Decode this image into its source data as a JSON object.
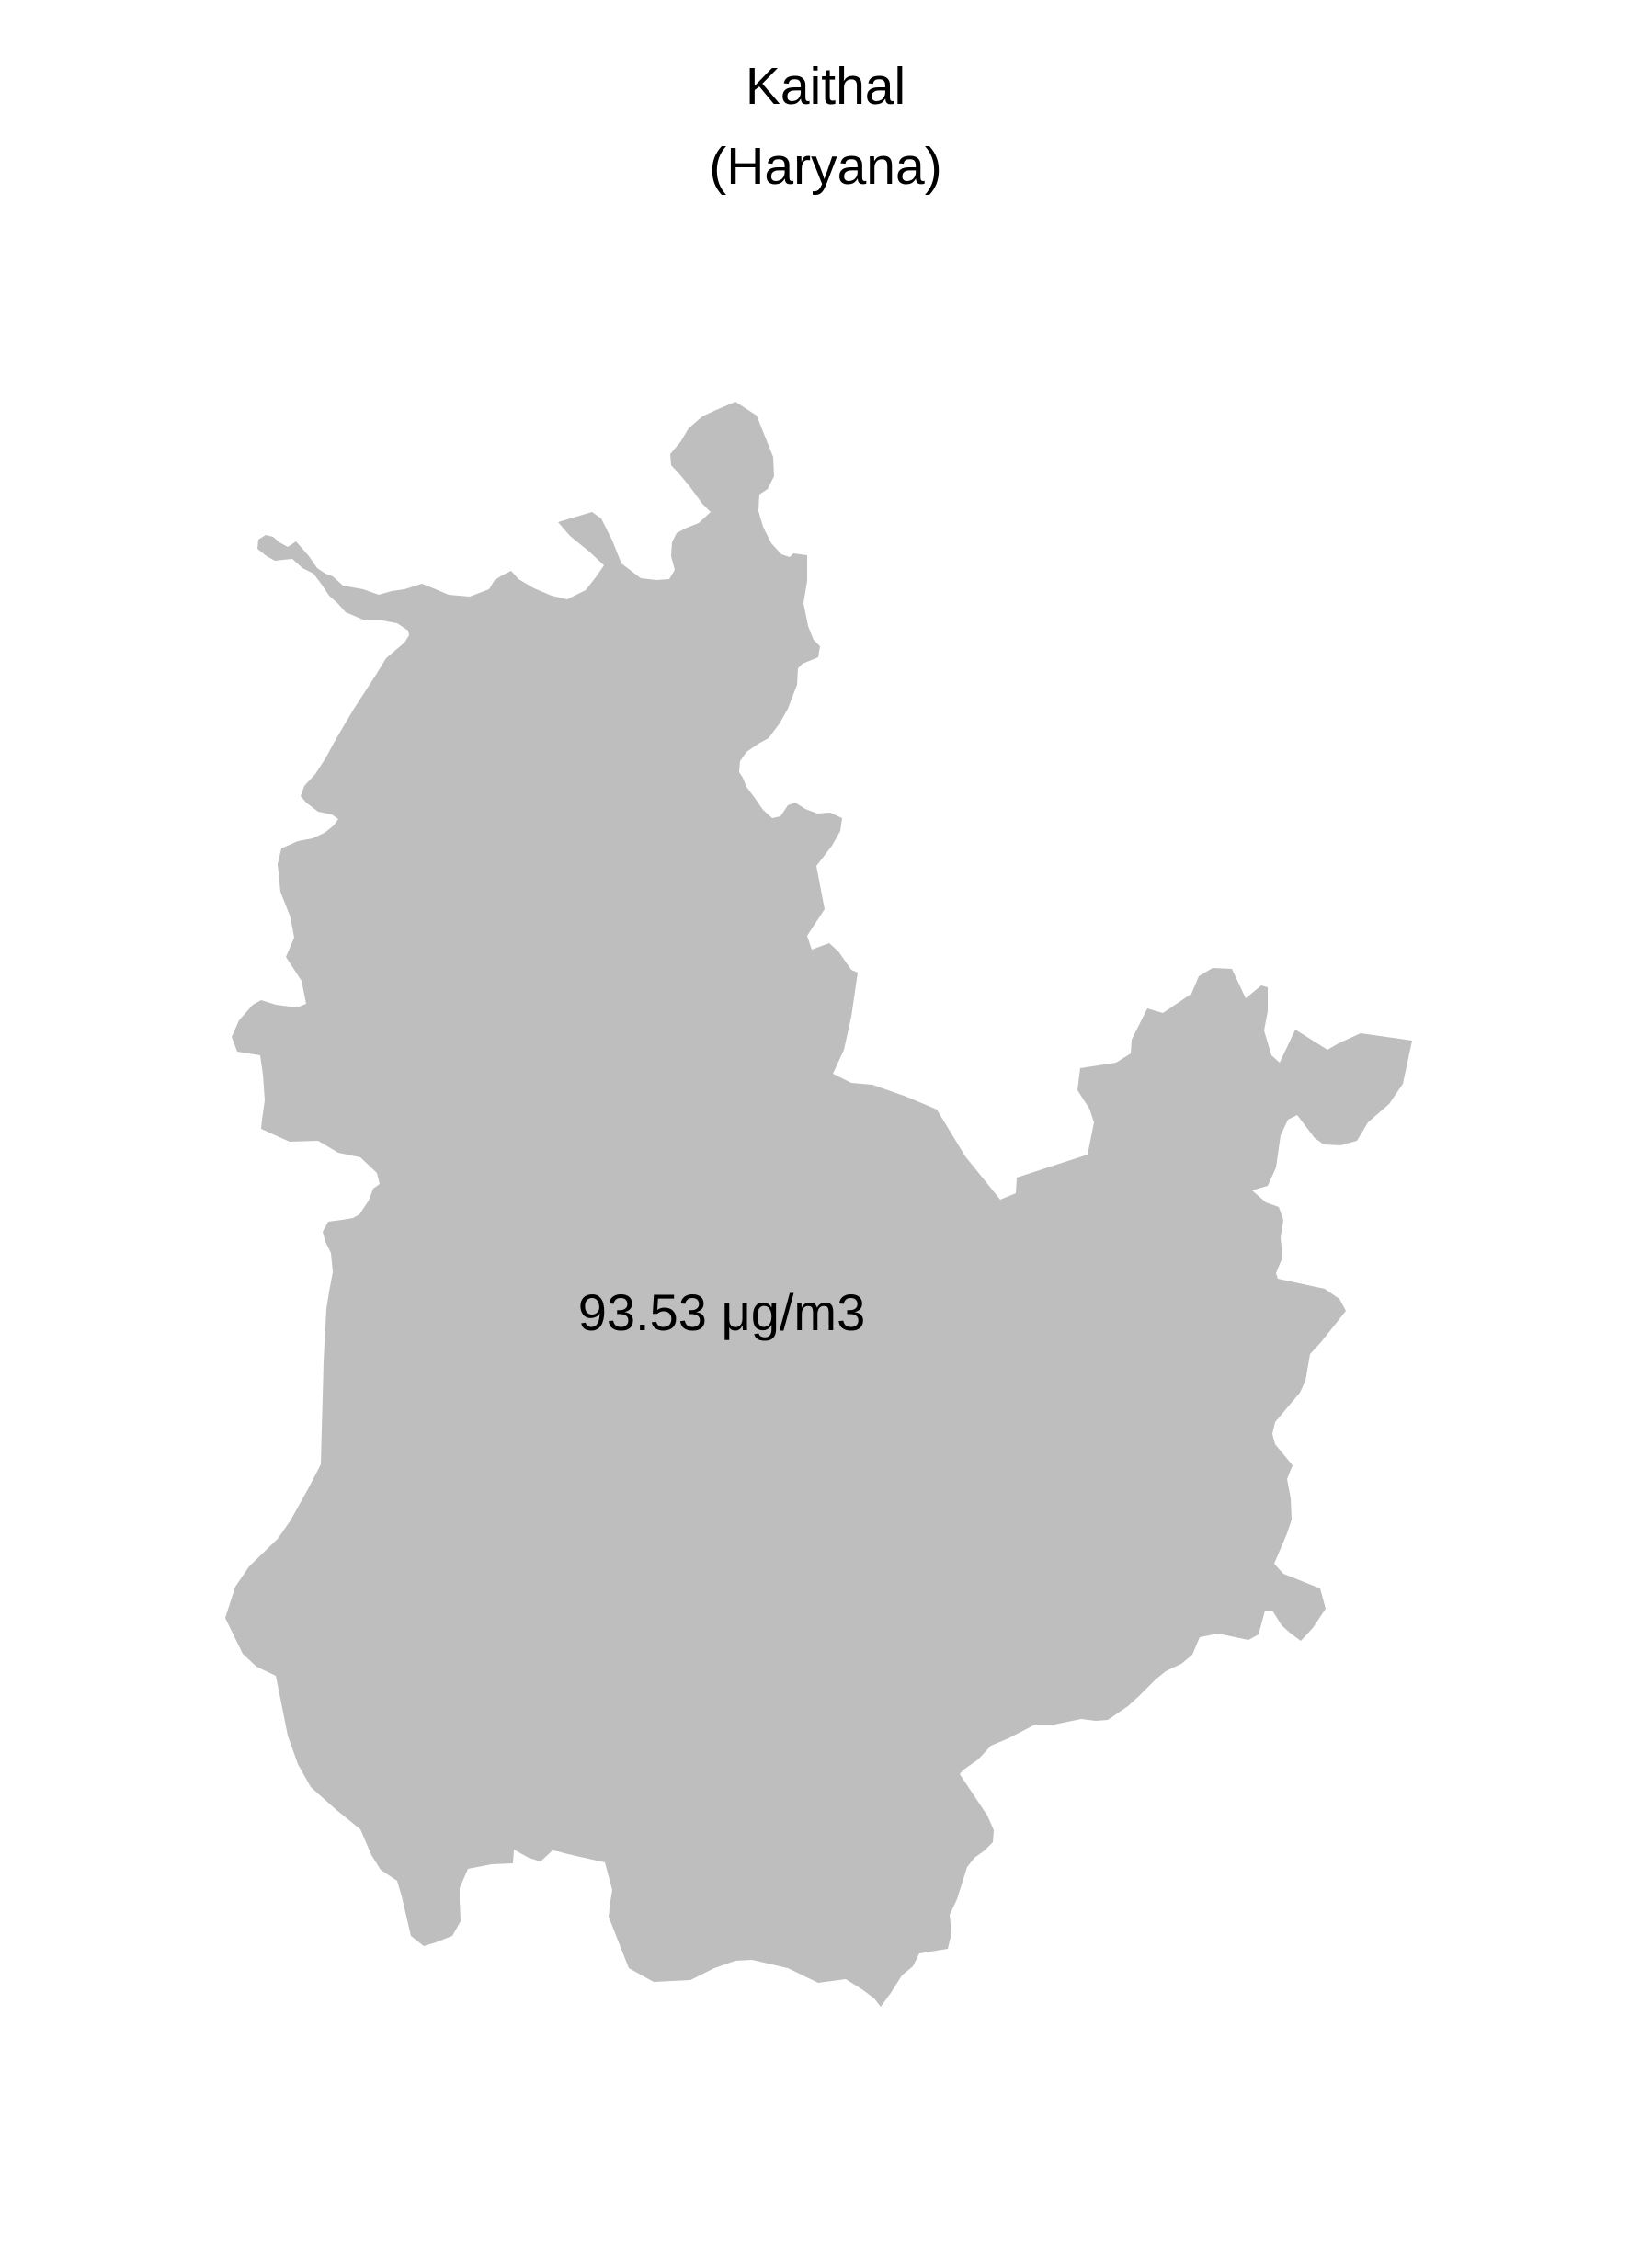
{
  "map": {
    "title": "Kaithal",
    "subtitle": "(Haryana)",
    "region_value_label": "93.53 μg/m3",
    "region_fill_color": "#bebebe",
    "background_color": "#ffffff"
  }
}
